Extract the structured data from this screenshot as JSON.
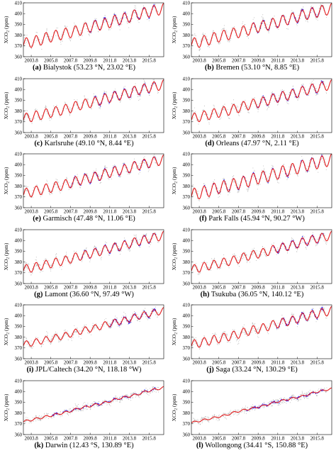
{
  "chart_data": [
    {
      "type": "scatter",
      "panel_letter": "(a)",
      "station": "Bialystok (53.23 °N, 23.02 °E)",
      "ylabel": "XCO2 (ppm)",
      "ylim": [
        360,
        410
      ],
      "yticks": [
        "360",
        "370",
        "380",
        "390",
        "400",
        "410"
      ],
      "xticks": [
        "2003.8",
        "2005.8",
        "2007.8",
        "2009.8",
        "2011.8",
        "2013.8",
        "2015.8"
      ],
      "xlim": [
        2003,
        2017.3
      ],
      "series": [
        {
          "values": [
            373,
            375,
            378,
            380,
            382,
            384,
            387,
            389,
            391,
            394,
            396,
            399,
            401,
            403
          ]
        }
      ],
      "seasonal_amplitude": 5,
      "blue_range": [
        2009.3,
        2016.5
      ]
    },
    {
      "type": "scatter",
      "panel_letter": "(b)",
      "station": "Bremen (53.10 °N, 8.85 °E)",
      "ylabel": "XCO2 (ppm)",
      "ylim": [
        360,
        410
      ],
      "yticks": [
        "360",
        "370",
        "380",
        "390",
        "400",
        "410"
      ],
      "xticks": [
        "2003.8",
        "2005.8",
        "2007.8",
        "2009.8",
        "2011.8",
        "2013.8",
        "2015.8"
      ],
      "xlim": [
        2003,
        2017.3
      ],
      "series": [
        {
          "values": [
            373,
            375,
            378,
            380,
            382,
            384,
            387,
            389,
            391,
            394,
            396,
            399,
            401,
            403
          ]
        }
      ],
      "seasonal_amplitude": 5,
      "blue_range": [
        2009.3,
        2016.5
      ]
    },
    {
      "type": "scatter",
      "panel_letter": "(c)",
      "station": "Karlsruhe (49.10 °N, 8.44 °E)",
      "ylabel": "XCO2 (ppm)",
      "ylim": [
        360,
        410
      ],
      "yticks": [
        "360",
        "370",
        "380",
        "390",
        "400",
        "410"
      ],
      "xticks": [
        "2003.8",
        "2005.8",
        "2007.8",
        "2009.8",
        "2011.8",
        "2013.8",
        "2015.8"
      ],
      "xlim": [
        2003,
        2017.3
      ],
      "series": [
        {
          "values": [
            374,
            376,
            378,
            380,
            382,
            385,
            387,
            389,
            392,
            394,
            396,
            399,
            401,
            403
          ]
        }
      ],
      "seasonal_amplitude": 4.5,
      "blue_range": [
        2010.2,
        2016.5
      ]
    },
    {
      "type": "scatter",
      "panel_letter": "(d)",
      "station": "Orleans (47.97 °N, 2.11 °E)",
      "ylabel": "XCO2 (ppm)",
      "ylim": [
        360,
        410
      ],
      "yticks": [
        "360",
        "370",
        "380",
        "390",
        "400",
        "410"
      ],
      "xticks": [
        "2003.8",
        "2005.8",
        "2007.8",
        "2009.8",
        "2011.8",
        "2013.8",
        "2015.8"
      ],
      "xlim": [
        2003,
        2017.3
      ],
      "series": [
        {
          "values": [
            374,
            376,
            378,
            380,
            382,
            385,
            387,
            389,
            392,
            394,
            396,
            399,
            401,
            403
          ]
        }
      ],
      "seasonal_amplitude": 4.5,
      "blue_range": [
        2009.6,
        2016.5
      ]
    },
    {
      "type": "scatter",
      "panel_letter": "(e)",
      "station": "Garmisch (47.48 °N, 11.06 °E)",
      "ylabel": "XCO2 (ppm)",
      "ylim": [
        360,
        410
      ],
      "yticks": [
        "360",
        "370",
        "380",
        "390",
        "400",
        "410"
      ],
      "xticks": [
        "2003.8",
        "2005.8",
        "2007.8",
        "2009.8",
        "2011.8",
        "2013.8",
        "2015.8"
      ],
      "xlim": [
        2003,
        2017.3
      ],
      "series": [
        {
          "values": [
            374,
            376,
            378,
            380,
            382,
            385,
            387,
            389,
            392,
            394,
            396,
            399,
            401,
            403
          ]
        }
      ],
      "seasonal_amplitude": 4.5,
      "blue_range": [
        2007.8,
        2016.5
      ]
    },
    {
      "type": "scatter",
      "panel_letter": "(f)",
      "station": "Park Falls (45.94 °N, 90.27 °W)",
      "ylabel": "XCO2 (ppm)",
      "ylim": [
        360,
        410
      ],
      "yticks": [
        "360",
        "370",
        "380",
        "390",
        "400",
        "410"
      ],
      "xticks": [
        "2003.8",
        "2005.8",
        "2007.8",
        "2009.8",
        "2011.8",
        "2013.8",
        "2015.8"
      ],
      "xlim": [
        2003,
        2017.3
      ],
      "series": [
        {
          "values": [
            373,
            375,
            378,
            380,
            382,
            384,
            387,
            389,
            391,
            394,
            396,
            399,
            401,
            403
          ]
        }
      ],
      "seasonal_amplitude": 5.5,
      "blue_range": [
        2004.3,
        2016.5
      ]
    },
    {
      "type": "scatter",
      "panel_letter": "(g)",
      "station": "Lamont (36.60 °N, 97.49 °W)",
      "ylabel": "XCO2 (ppm)",
      "ylim": [
        360,
        410
      ],
      "yticks": [
        "360",
        "370",
        "380",
        "390",
        "400",
        "410"
      ],
      "xticks": [
        "2003.8",
        "2005.8",
        "2007.8",
        "2009.8",
        "2011.8",
        "2013.8",
        "2015.8"
      ],
      "xlim": [
        2003,
        2017.3
      ],
      "series": [
        {
          "values": [
            374,
            376,
            378,
            380,
            382,
            385,
            387,
            389,
            392,
            394,
            396,
            399,
            401,
            403
          ]
        }
      ],
      "seasonal_amplitude": 4,
      "blue_range": [
        2008.6,
        2016.5
      ]
    },
    {
      "type": "scatter",
      "panel_letter": "(h)",
      "station": "Tsukuba (36.05 °N, 140.12 °E)",
      "ylabel": "XCO2 (ppm)",
      "ylim": [
        360,
        410
      ],
      "yticks": [
        "360",
        "370",
        "380",
        "390",
        "400",
        "410"
      ],
      "xticks": [
        "2003.8",
        "2005.8",
        "2007.8",
        "2009.8",
        "2011.8",
        "2013.8",
        "2015.8"
      ],
      "xlim": [
        2003,
        2017.3
      ],
      "series": [
        {
          "values": [
            374,
            376,
            378,
            380,
            382,
            385,
            387,
            389,
            392,
            394,
            396,
            399,
            401,
            403
          ]
        }
      ],
      "seasonal_amplitude": 4,
      "blue_range": [
        2011.3,
        2016.5
      ]
    },
    {
      "type": "scatter",
      "panel_letter": "(i)",
      "station": "JPL/Caltech (34.20 °N, 118.18 °W)",
      "ylabel": "XCO2 (ppm)",
      "ylim": [
        360,
        410
      ],
      "yticks": [
        "360",
        "370",
        "380",
        "390",
        "400",
        "410"
      ],
      "xticks": [
        "2003.8",
        "2005.8",
        "2007.8",
        "2009.8",
        "2011.8",
        "2013.8",
        "2015.8"
      ],
      "xlim": [
        2003,
        2017.3
      ],
      "series": [
        {
          "values": [
            374,
            376,
            378,
            380,
            382,
            385,
            387,
            389,
            392,
            394,
            396,
            399,
            401,
            403
          ]
        }
      ],
      "seasonal_amplitude": 3,
      "blue_range": [
        2011.8,
        2016.5
      ]
    },
    {
      "type": "scatter",
      "panel_letter": "(j)",
      "station": "Saga (33.24 °N, 130.29 °E)",
      "ylabel": "XCO2 (ppm)",
      "ylim": [
        360,
        410
      ],
      "yticks": [
        "360",
        "370",
        "380",
        "390",
        "400",
        "410"
      ],
      "xticks": [
        "2003.8",
        "2005.8",
        "2007.8",
        "2009.8",
        "2011.8",
        "2013.8",
        "2015.8"
      ],
      "xlim": [
        2003,
        2017.3
      ],
      "series": [
        {
          "values": [
            374,
            376,
            378,
            380,
            382,
            385,
            387,
            389,
            392,
            394,
            396,
            399,
            401,
            403
          ]
        }
      ],
      "seasonal_amplitude": 4,
      "blue_range": [
        2011.5,
        2016.5
      ]
    },
    {
      "type": "scatter",
      "panel_letter": "(k)",
      "station": "Darwin (12.43 °S, 130.89 °E)",
      "ylabel": "XCO2 (ppm)",
      "ylim": [
        360,
        410
      ],
      "yticks": [
        "360",
        "370",
        "380",
        "390",
        "400",
        "410"
      ],
      "xticks": [
        "2003.8",
        "2005.8",
        "2007.8",
        "2009.8",
        "2011.8",
        "2013.8",
        "2015.8"
      ],
      "xlim": [
        2003,
        2017.3
      ],
      "series": [
        {
          "values": [
            373,
            375,
            377,
            379,
            381,
            384,
            386,
            388,
            390,
            393,
            395,
            397,
            400,
            402
          ]
        }
      ],
      "seasonal_amplitude": 1,
      "blue_range": [
        2005.9,
        2016.5
      ]
    },
    {
      "type": "scatter",
      "panel_letter": "(l)",
      "station": "Wollongong (34.41 °S, 150.88 °E)",
      "ylabel": "XCO2 (ppm)",
      "ylim": [
        360,
        410
      ],
      "yticks": [
        "360",
        "370",
        "380",
        "390",
        "400",
        "410"
      ],
      "xticks": [
        "2003.8",
        "2005.8",
        "2007.8",
        "2009.8",
        "2011.8",
        "2013.8",
        "2015.8"
      ],
      "xlim": [
        2003,
        2017.3
      ],
      "series": [
        {
          "values": [
            372,
            374,
            376,
            378,
            381,
            383,
            385,
            387,
            390,
            392,
            394,
            396,
            399,
            401
          ]
        }
      ],
      "seasonal_amplitude": 0.8,
      "blue_range": [
        2008.5,
        2016.5
      ]
    }
  ],
  "colors": {
    "scatter": "#bdbdbd",
    "model": "#e41a1c",
    "obs": "#2a2aff",
    "axis": "#000000"
  }
}
